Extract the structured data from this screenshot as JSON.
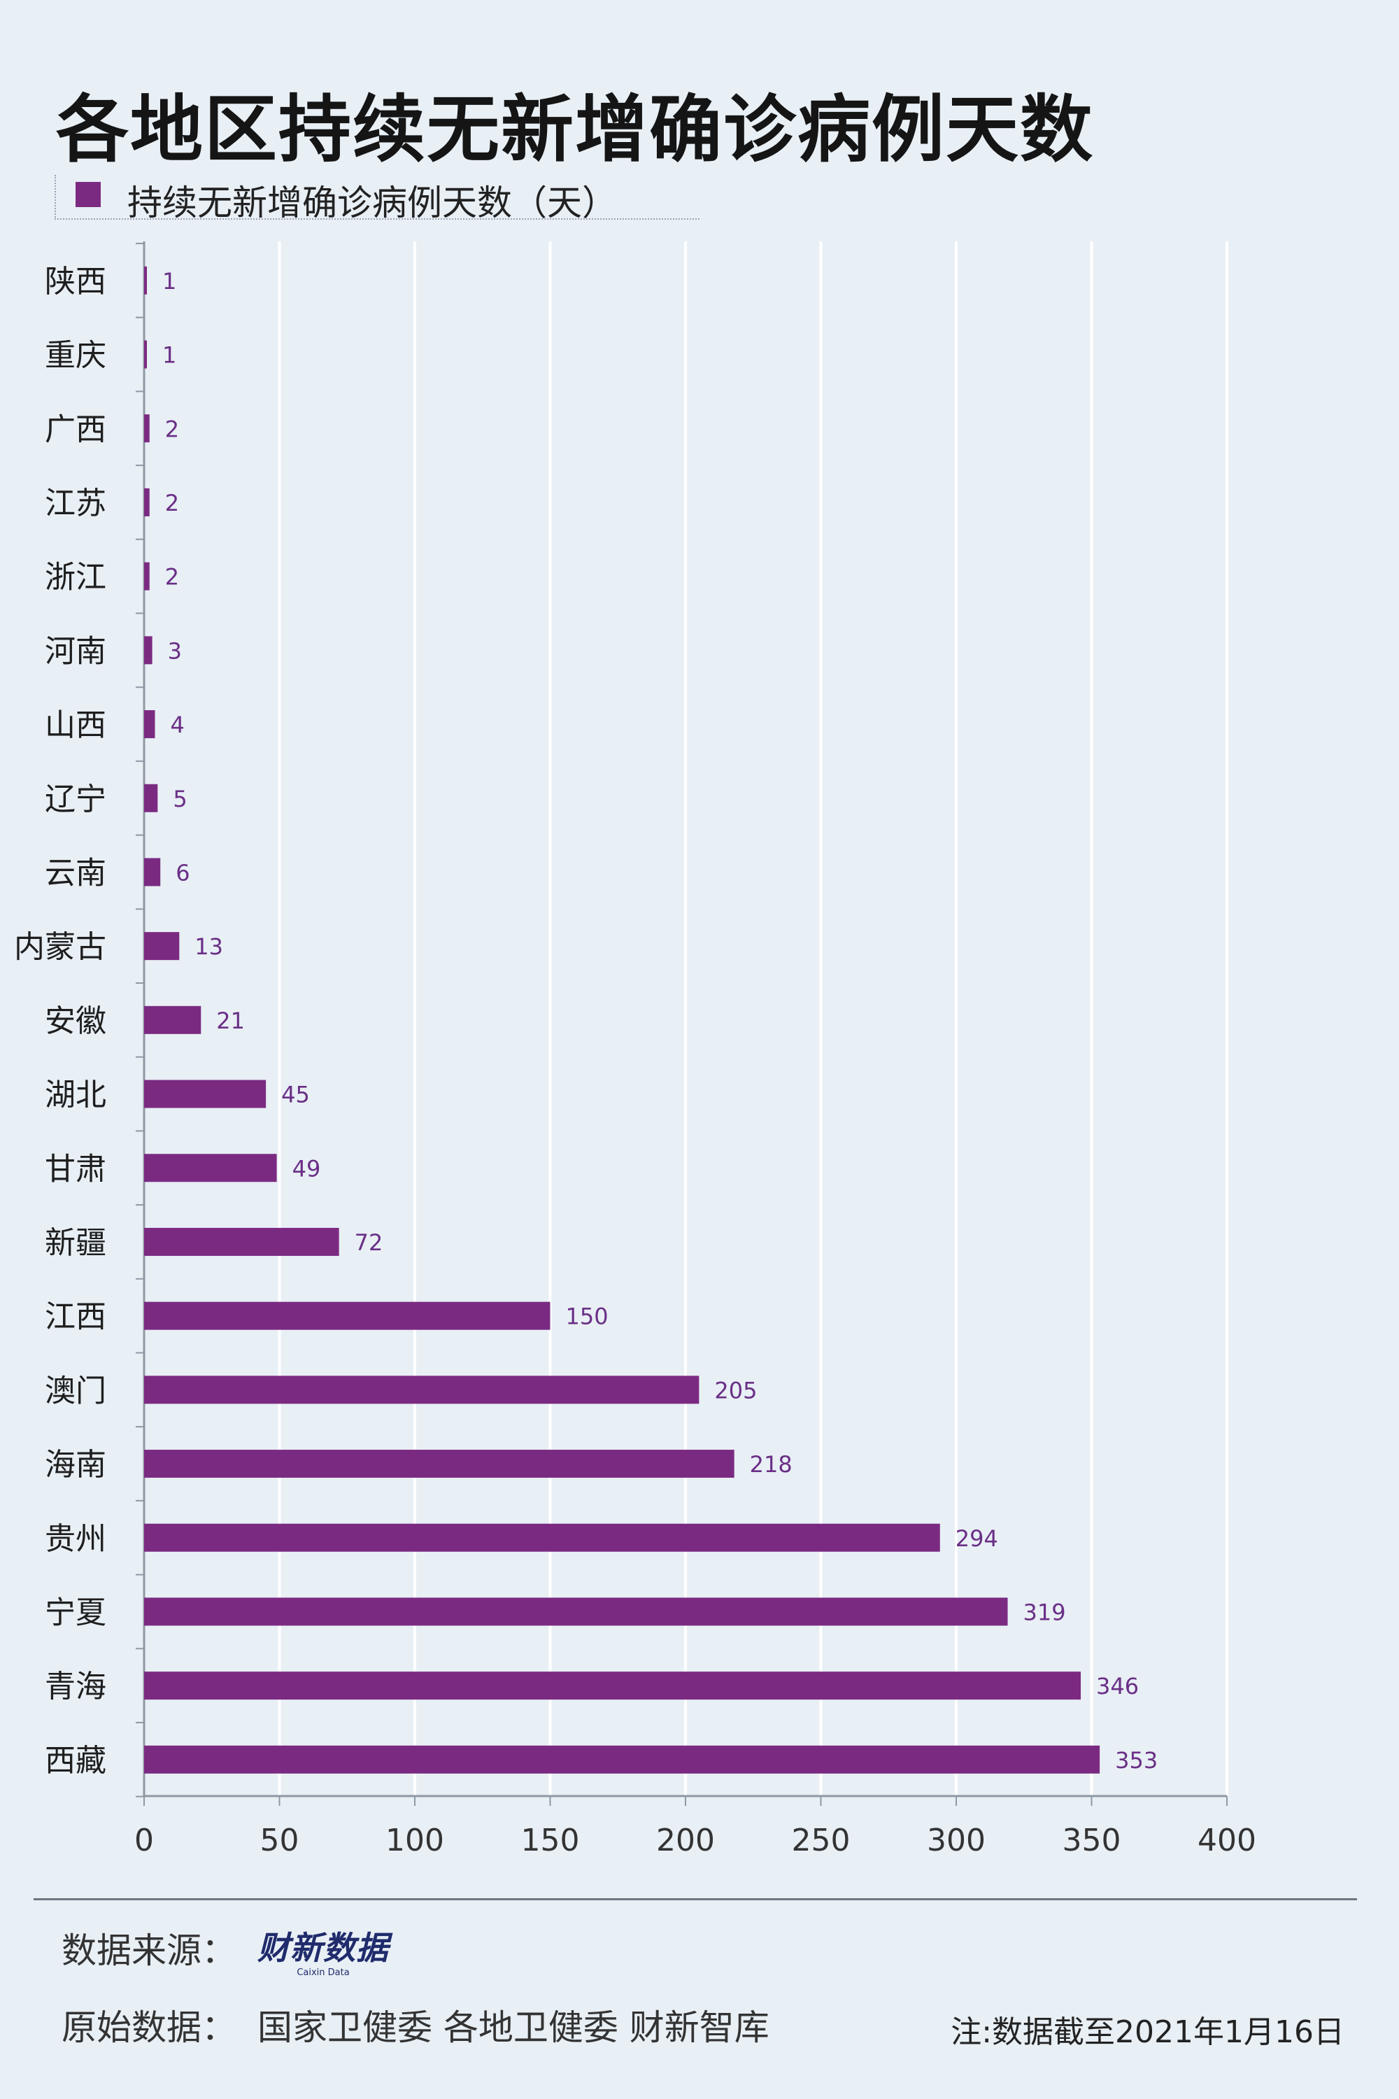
{
  "chart_data": {
    "type": "bar",
    "orientation": "horizontal",
    "title": "各地区持续无新增确诊病例天数",
    "legend": [
      "持续无新增确诊病例天数（天）"
    ],
    "categories": [
      "陕西",
      "重庆",
      "广西",
      "江苏",
      "浙江",
      "河南",
      "山西",
      "辽宁",
      "云南",
      "内蒙古",
      "安徽",
      "湖北",
      "甘肃",
      "新疆",
      "江西",
      "澳门",
      "海南",
      "贵州",
      "宁夏",
      "青海",
      "西藏"
    ],
    "series": [
      {
        "name": "持续无新增确诊病例天数（天）",
        "values": [
          1,
          1,
          2,
          2,
          2,
          3,
          4,
          5,
          6,
          13,
          21,
          45,
          49,
          72,
          150,
          205,
          218,
          294,
          319,
          346,
          353
        ]
      }
    ],
    "xlim": [
      0,
      400
    ],
    "xticks": [
      0,
      50,
      100,
      150,
      200,
      250,
      300,
      350,
      400
    ],
    "grid": "vertical",
    "bar_color": "#7b2a82",
    "label_color": "#6a2f86"
  },
  "footer": {
    "source_label": "数据来源：",
    "source_logo": "财新数据",
    "source_logo_en": "Caixin Data",
    "original_label": "原始数据：",
    "original_value": "国家卫健委  各地卫健委  财新智库",
    "note": "注:数据截至2021年1月16日"
  }
}
